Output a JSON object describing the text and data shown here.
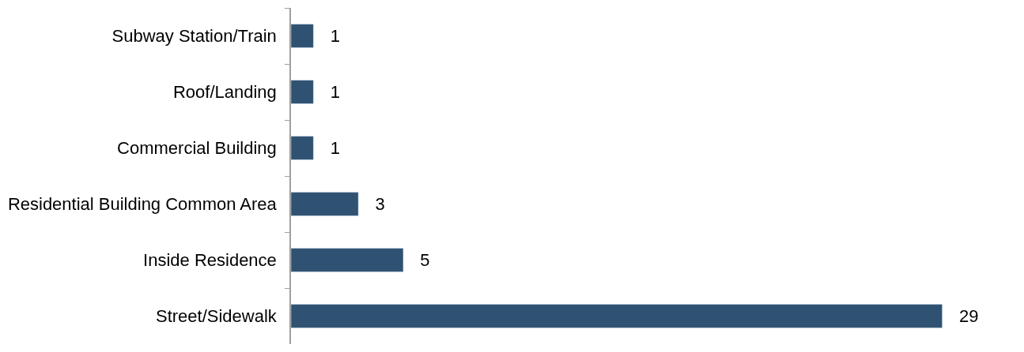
{
  "chart_data": {
    "type": "bar",
    "orientation": "horizontal",
    "categories": [
      "Subway Station/Train",
      "Roof/Landing",
      "Commercial Building",
      "Residential Building Common Area",
      "Inside Residence",
      "Street/Sidewalk"
    ],
    "values": [
      1,
      1,
      1,
      3,
      5,
      29
    ],
    "color": "#2f5273",
    "data_labels": true,
    "tick_labels": "y"
  }
}
